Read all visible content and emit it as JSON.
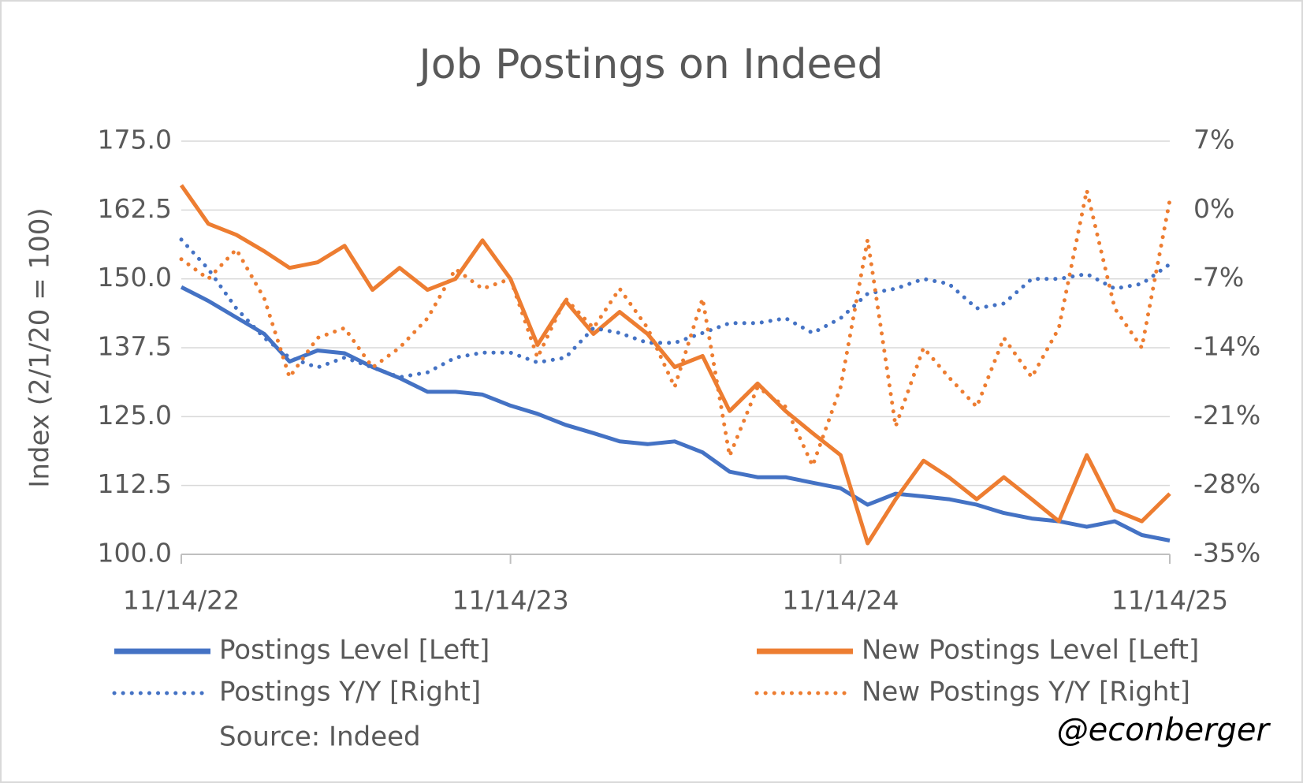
{
  "chart_data": {
    "type": "line",
    "title": "Job Postings on Indeed",
    "y_label": "Index (2/1/20 = 100)",
    "source": "Source: Indeed",
    "credit": "@econberger",
    "x": [
      "11/14/22",
      "12/14/22",
      "1/14/23",
      "2/14/23",
      "3/14/23",
      "4/14/23",
      "5/14/23",
      "6/14/23",
      "7/14/23",
      "8/14/23",
      "9/14/23",
      "10/14/23",
      "11/14/23",
      "12/14/23",
      "1/14/24",
      "2/14/24",
      "3/14/24",
      "4/14/24",
      "5/14/24",
      "6/14/24",
      "7/14/24",
      "8/14/24",
      "9/14/24",
      "10/14/24",
      "11/14/24",
      "12/14/24",
      "1/14/25",
      "2/14/25",
      "3/14/25",
      "4/14/25",
      "5/14/25",
      "6/14/25",
      "7/14/25",
      "8/14/25",
      "9/14/25",
      "10/14/25",
      "11/14/25"
    ],
    "xlim": [
      "11/14/22",
      "11/14/25"
    ],
    "xticks": [
      "11/14/22",
      "11/14/23",
      "11/14/24",
      "11/14/25"
    ],
    "ylim": [
      100,
      175
    ],
    "yticks": [
      {
        "value": 100,
        "label": "100.0"
      },
      112.5,
      {
        "value": 125,
        "label": "125.0"
      },
      137.5,
      {
        "value": 150,
        "label": "150.0"
      },
      162.5,
      {
        "value": 175,
        "label": "175.0"
      }
    ],
    "y2lim": [
      -35,
      7
    ],
    "y2ticks": [
      {
        "value": -35,
        "label": "-35%"
      },
      {
        "value": -28,
        "label": "-28%"
      },
      {
        "value": -21,
        "label": "-21%"
      },
      {
        "value": -14,
        "label": "-14%"
      },
      {
        "value": -7,
        "label": "-7%"
      },
      {
        "value": 0,
        "label": "0%"
      },
      {
        "value": 7,
        "label": "7%"
      }
    ],
    "grid": true,
    "legend": "bottom",
    "series": [
      {
        "name": "Postings Level [Left]",
        "color": "#4472c4",
        "line_style": "solid",
        "values": [
          148.5,
          146,
          143,
          140,
          135,
          137,
          136.5,
          134,
          132,
          129.5,
          129.5,
          129,
          127,
          125.5,
          123.5,
          122,
          120.5,
          120,
          120.5,
          118.5,
          115,
          114,
          114,
          113,
          112,
          109,
          111,
          110.5,
          110,
          109,
          107.5,
          106.5,
          106,
          105,
          106,
          103.5,
          102.5
        ]
      },
      {
        "name": "New Postings Level [Left]",
        "color": "#ed7d31",
        "line_style": "solid",
        "values": [
          167,
          160,
          158,
          155,
          152,
          153,
          156,
          148,
          152,
          148,
          150,
          157,
          150,
          138,
          146,
          140,
          144,
          140,
          134,
          136,
          126,
          131,
          126,
          122,
          118,
          102,
          110,
          117,
          114,
          110,
          114,
          110,
          106,
          118,
          108,
          106,
          111
        ]
      },
      {
        "name": "Postings Y/Y [Right]",
        "color": "#4472c4",
        "line_style": "dotted",
        "axis": "y2",
        "values": [
          -3,
          -6,
          -10,
          -13,
          -15,
          -16,
          -15,
          -16,
          -17,
          -16.5,
          -15,
          -14.5,
          -14.5,
          -15.5,
          -15,
          -12,
          -12.5,
          -13.5,
          -13.5,
          -12.5,
          -11.5,
          -11.5,
          -11,
          -12.5,
          -11,
          -8.5,
          -8,
          -7,
          -7.5,
          -10,
          -9.5,
          -7,
          -7,
          -6.5,
          -8,
          -7.5,
          -5.5
        ]
      },
      {
        "name": "New Postings Y/Y [Right]",
        "color": "#ed7d31",
        "line_style": "dotted",
        "axis": "y2",
        "values": [
          -5,
          -7,
          -4,
          -9,
          -17,
          -13,
          -12,
          -16,
          -14,
          -11,
          -6,
          -8,
          -7,
          -15,
          -9,
          -12,
          -8,
          -12,
          -18,
          -9,
          -25,
          -18,
          -20,
          -26,
          -18,
          -3,
          -22,
          -14,
          -17,
          -20,
          -13,
          -17,
          -12,
          2,
          -10,
          -14,
          1
        ]
      }
    ]
  }
}
